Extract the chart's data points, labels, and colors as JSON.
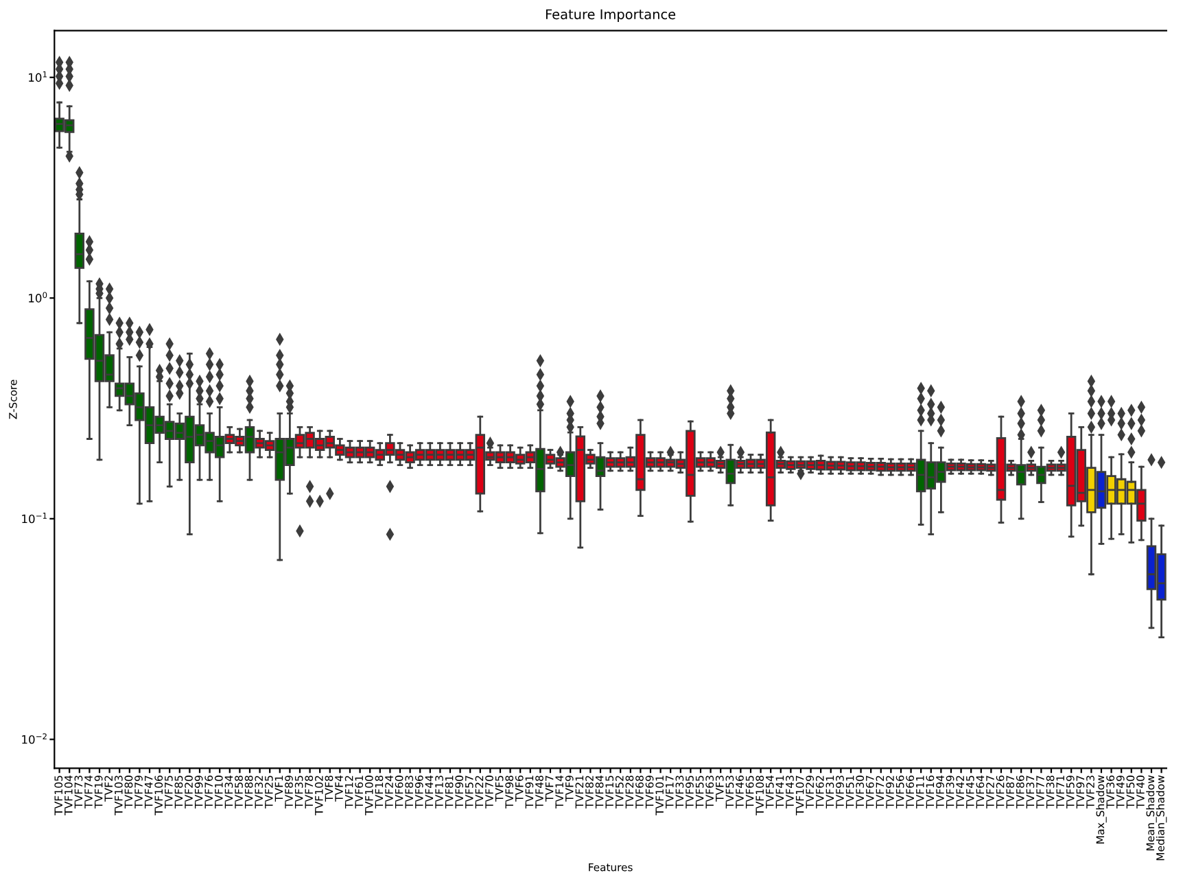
{
  "chart_data": {
    "type": "box",
    "title": "Feature Importance",
    "xlabel": "Features",
    "ylabel": "Z-Score",
    "categories": [
      "TVF105",
      "TVF104",
      "TVF73",
      "TVF74",
      "TVF19",
      "TVF2",
      "TVF103",
      "TVF80",
      "TVF79",
      "TVF47",
      "TVF106",
      "TVF75",
      "TVF85",
      "TVF20",
      "TVF99",
      "TVF76",
      "TVF10",
      "TVF34",
      "TVF58",
      "TVF88",
      "TVF32",
      "TVF25",
      "TVF1",
      "TVF89",
      "TVF35",
      "TVF78",
      "TVF102",
      "TVF8",
      "TVF4",
      "TVF12",
      "TVF61",
      "TVF100",
      "TVF18",
      "TVF24",
      "TVF60",
      "TVF83",
      "TVF96",
      "TVF44",
      "TVF13",
      "TVF81",
      "TVF90",
      "TVF57",
      "TVF22",
      "TVF70",
      "TVF5",
      "TVF98",
      "TVF6",
      "TVF91",
      "TVF48",
      "TVF7",
      "TVF14",
      "TVF9",
      "TVF21",
      "TVF82",
      "TVF84",
      "TVF15",
      "TVF52",
      "TVF28",
      "TVF68",
      "TVF69",
      "TVF101",
      "TVF17",
      "TVF33",
      "TVF95",
      "TVF55",
      "TVF63",
      "TVF3",
      "TVF53",
      "TVF46",
      "TVF65",
      "TVF108",
      "TVF54",
      "TVF41",
      "TVF43",
      "TVF107",
      "TVF29",
      "TVF62",
      "TVF31",
      "TVF93",
      "TVF51",
      "TVF30",
      "TVF67",
      "TVF72",
      "TVF92",
      "TVF56",
      "TVF66",
      "TVF11",
      "TVF16",
      "TVF94",
      "TVF39",
      "TVF42",
      "TVF45",
      "TVF64",
      "TVF27",
      "TVF26",
      "TVF87",
      "TVF86",
      "TVF37",
      "TVF77",
      "TVF38",
      "TVF71",
      "TVF59",
      "TVF97",
      "TVF23",
      "Max_Shadow",
      "TVF36",
      "TVF49",
      "TVF50",
      "TVF40",
      "Mean_Shadow",
      "Median_Shadow"
    ],
    "colors": [
      "#006400",
      "#006400",
      "#006400",
      "#006400",
      "#006400",
      "#006400",
      "#006400",
      "#006400",
      "#006400",
      "#006400",
      "#006400",
      "#006400",
      "#006400",
      "#006400",
      "#006400",
      "#006400",
      "#006400",
      "#dc0014",
      "#dc0014",
      "#006400",
      "#dc0014",
      "#dc0014",
      "#006400",
      "#006400",
      "#dc0014",
      "#dc0014",
      "#dc0014",
      "#dc0014",
      "#dc0014",
      "#dc0014",
      "#dc0014",
      "#dc0014",
      "#dc0014",
      "#dc0014",
      "#dc0014",
      "#dc0014",
      "#dc0014",
      "#dc0014",
      "#dc0014",
      "#dc0014",
      "#dc0014",
      "#dc0014",
      "#dc0014",
      "#dc0014",
      "#dc0014",
      "#dc0014",
      "#dc0014",
      "#dc0014",
      "#006400",
      "#dc0014",
      "#dc0014",
      "#006400",
      "#dc0014",
      "#dc0014",
      "#006400",
      "#dc0014",
      "#dc0014",
      "#dc0014",
      "#dc0014",
      "#dc0014",
      "#dc0014",
      "#dc0014",
      "#dc0014",
      "#dc0014",
      "#dc0014",
      "#dc0014",
      "#dc0014",
      "#006400",
      "#dc0014",
      "#dc0014",
      "#dc0014",
      "#dc0014",
      "#dc0014",
      "#dc0014",
      "#dc0014",
      "#dc0014",
      "#dc0014",
      "#dc0014",
      "#dc0014",
      "#dc0014",
      "#dc0014",
      "#dc0014",
      "#dc0014",
      "#dc0014",
      "#dc0014",
      "#dc0014",
      "#006400",
      "#006400",
      "#006400",
      "#dc0014",
      "#dc0014",
      "#dc0014",
      "#dc0014",
      "#dc0014",
      "#dc0014",
      "#dc0014",
      "#006400",
      "#dc0014",
      "#006400",
      "#dc0014",
      "#dc0014",
      "#dc0014",
      "#dc0014",
      "#f2d000",
      "#0a22d0",
      "#f2d000",
      "#f2d000",
      "#f2d000",
      "#dc0014",
      "#0a22d0",
      "#0a22d0"
    ],
    "boxes": [
      {
        "low": 4.8,
        "q1": 5.7,
        "median": 6.15,
        "q3": 6.5,
        "high": 7.7,
        "outliers": [
          9.4,
          10.1,
          10.9,
          11.7
        ]
      },
      {
        "low": 4.6,
        "q1": 5.65,
        "median": 6.06,
        "q3": 6.4,
        "high": 7.4,
        "outliers": [
          4.4,
          9.2,
          10.1,
          10.9,
          11.7
        ]
      },
      {
        "low": 0.77,
        "q1": 1.37,
        "median": 1.58,
        "q3": 1.96,
        "high": 2.8,
        "outliers": [
          2.95,
          3.1,
          3.3,
          3.7
        ]
      },
      {
        "low": 0.23,
        "q1": 0.53,
        "median": 0.66,
        "q3": 0.89,
        "high": 1.19,
        "outliers": [
          1.5,
          1.65,
          1.8
        ]
      },
      {
        "low": 0.185,
        "q1": 0.42,
        "median": 0.52,
        "q3": 0.68,
        "high": 1.0,
        "outliers": [
          1.05,
          1.1,
          1.16
        ]
      },
      {
        "low": 0.32,
        "q1": 0.42,
        "median": 0.45,
        "q3": 0.55,
        "high": 0.7,
        "outliers": [
          0.8,
          0.9,
          1.0,
          1.1
        ]
      },
      {
        "low": 0.31,
        "q1": 0.36,
        "median": 0.39,
        "q3": 0.41,
        "high": 0.59,
        "outliers": [
          0.62,
          0.7,
          0.77
        ]
      },
      {
        "low": 0.265,
        "q1": 0.33,
        "median": 0.36,
        "q3": 0.41,
        "high": 0.54,
        "outliers": [
          0.65,
          0.7,
          0.77
        ]
      },
      {
        "low": 0.117,
        "q1": 0.28,
        "median": 0.32,
        "q3": 0.37,
        "high": 0.49,
        "outliers": [
          0.55,
          0.63,
          0.7
        ]
      },
      {
        "low": 0.12,
        "q1": 0.22,
        "median": 0.265,
        "q3": 0.32,
        "high": 0.6,
        "outliers": [
          0.62,
          0.72
        ]
      },
      {
        "low": 0.18,
        "q1": 0.245,
        "median": 0.265,
        "q3": 0.29,
        "high": 0.42,
        "outliers": [
          0.44,
          0.47
        ]
      },
      {
        "low": 0.14,
        "q1": 0.23,
        "median": 0.25,
        "q3": 0.275,
        "high": 0.33,
        "outliers": [
          0.36,
          0.41,
          0.48,
          0.55,
          0.62
        ]
      },
      {
        "low": 0.15,
        "q1": 0.23,
        "median": 0.245,
        "q3": 0.27,
        "high": 0.3,
        "outliers": [
          0.37,
          0.4,
          0.46,
          0.52
        ]
      },
      {
        "low": 0.085,
        "q1": 0.18,
        "median": 0.235,
        "q3": 0.29,
        "high": 0.56,
        "outliers": [
          0.41,
          0.45,
          0.5
        ]
      },
      {
        "low": 0.15,
        "q1": 0.215,
        "median": 0.24,
        "q3": 0.265,
        "high": 0.33,
        "outliers": [
          0.35,
          0.38,
          0.42
        ]
      },
      {
        "low": 0.15,
        "q1": 0.2,
        "median": 0.225,
        "q3": 0.245,
        "high": 0.3,
        "outliers": [
          0.34,
          0.38,
          0.44,
          0.5,
          0.56
        ]
      },
      {
        "low": 0.12,
        "q1": 0.19,
        "median": 0.215,
        "q3": 0.235,
        "high": 0.32,
        "outliers": [
          0.35,
          0.4,
          0.45,
          0.5
        ]
      },
      {
        "low": 0.2,
        "q1": 0.22,
        "median": 0.23,
        "q3": 0.24,
        "high": 0.26
      },
      {
        "low": 0.2,
        "q1": 0.215,
        "median": 0.225,
        "q3": 0.235,
        "high": 0.255
      },
      {
        "low": 0.15,
        "q1": 0.2,
        "median": 0.235,
        "q3": 0.26,
        "high": 0.28,
        "outliers": [
          0.32,
          0.35,
          0.38,
          0.42
        ]
      },
      {
        "low": 0.19,
        "q1": 0.21,
        "median": 0.22,
        "q3": 0.23,
        "high": 0.25
      },
      {
        "low": 0.19,
        "q1": 0.205,
        "median": 0.215,
        "q3": 0.225,
        "high": 0.245
      },
      {
        "low": 0.065,
        "q1": 0.15,
        "median": 0.2,
        "q3": 0.23,
        "high": 0.3,
        "outliers": [
          0.4,
          0.45,
          0.5,
          0.55,
          0.65
        ]
      },
      {
        "low": 0.13,
        "q1": 0.175,
        "median": 0.21,
        "q3": 0.23,
        "high": 0.3,
        "outliers": [
          0.32,
          0.34,
          0.37,
          0.4
        ]
      },
      {
        "low": 0.19,
        "q1": 0.21,
        "median": 0.22,
        "q3": 0.24,
        "high": 0.26,
        "outliers": [
          0.088
        ]
      },
      {
        "low": 0.19,
        "q1": 0.21,
        "median": 0.23,
        "q3": 0.245,
        "high": 0.26,
        "outliers": [
          0.12,
          0.14
        ]
      },
      {
        "low": 0.19,
        "q1": 0.205,
        "median": 0.215,
        "q3": 0.23,
        "high": 0.25,
        "outliers": [
          0.12
        ]
      },
      {
        "low": 0.19,
        "q1": 0.21,
        "median": 0.22,
        "q3": 0.235,
        "high": 0.25,
        "outliers": [
          0.13
        ]
      },
      {
        "low": 0.185,
        "q1": 0.195,
        "median": 0.205,
        "q3": 0.215,
        "high": 0.23
      },
      {
        "low": 0.18,
        "q1": 0.19,
        "median": 0.2,
        "q3": 0.21,
        "high": 0.225
      },
      {
        "low": 0.18,
        "q1": 0.19,
        "median": 0.2,
        "q3": 0.21,
        "high": 0.225
      },
      {
        "low": 0.18,
        "q1": 0.19,
        "median": 0.2,
        "q3": 0.21,
        "high": 0.225
      },
      {
        "low": 0.175,
        "q1": 0.185,
        "median": 0.195,
        "q3": 0.205,
        "high": 0.22
      },
      {
        "low": 0.18,
        "q1": 0.195,
        "median": 0.205,
        "q3": 0.22,
        "high": 0.24,
        "outliers": [
          0.085,
          0.14
        ]
      },
      {
        "low": 0.175,
        "q1": 0.185,
        "median": 0.195,
        "q3": 0.205,
        "high": 0.22
      },
      {
        "low": 0.17,
        "q1": 0.18,
        "median": 0.19,
        "q3": 0.2,
        "high": 0.215
      },
      {
        "low": 0.175,
        "q1": 0.185,
        "median": 0.195,
        "q3": 0.205,
        "high": 0.22
      },
      {
        "low": 0.175,
        "q1": 0.185,
        "median": 0.195,
        "q3": 0.205,
        "high": 0.22
      },
      {
        "low": 0.175,
        "q1": 0.185,
        "median": 0.195,
        "q3": 0.205,
        "high": 0.22
      },
      {
        "low": 0.175,
        "q1": 0.185,
        "median": 0.195,
        "q3": 0.205,
        "high": 0.22
      },
      {
        "low": 0.175,
        "q1": 0.185,
        "median": 0.195,
        "q3": 0.205,
        "high": 0.22
      },
      {
        "low": 0.175,
        "q1": 0.185,
        "median": 0.195,
        "q3": 0.205,
        "high": 0.22
      },
      {
        "low": 0.108,
        "q1": 0.13,
        "median": 0.21,
        "q3": 0.24,
        "high": 0.29
      },
      {
        "low": 0.175,
        "q1": 0.185,
        "median": 0.19,
        "q3": 0.2,
        "high": 0.21,
        "outliers": [
          0.22
        ]
      },
      {
        "low": 0.17,
        "q1": 0.18,
        "median": 0.19,
        "q3": 0.2,
        "high": 0.215
      },
      {
        "low": 0.17,
        "q1": 0.18,
        "median": 0.19,
        "q3": 0.2,
        "high": 0.215
      },
      {
        "low": 0.17,
        "q1": 0.178,
        "median": 0.185,
        "q3": 0.195,
        "high": 0.21
      },
      {
        "low": 0.17,
        "q1": 0.18,
        "median": 0.19,
        "q3": 0.2,
        "high": 0.215
      },
      {
        "low": 0.086,
        "q1": 0.133,
        "median": 0.168,
        "q3": 0.207,
        "high": 0.31,
        "outliers": [
          0.33,
          0.36,
          0.4,
          0.45,
          0.52
        ]
      },
      {
        "low": 0.17,
        "q1": 0.178,
        "median": 0.185,
        "q3": 0.195,
        "high": 0.205
      },
      {
        "low": 0.165,
        "q1": 0.172,
        "median": 0.18,
        "q3": 0.188,
        "high": 0.195,
        "outliers": [
          0.2
        ]
      },
      {
        "low": 0.1,
        "q1": 0.156,
        "median": 0.175,
        "q3": 0.2,
        "high": 0.246,
        "outliers": [
          0.26,
          0.28,
          0.3,
          0.34
        ]
      },
      {
        "low": 0.074,
        "q1": 0.12,
        "median": 0.205,
        "q3": 0.236,
        "high": 0.26
      },
      {
        "low": 0.17,
        "q1": 0.178,
        "median": 0.185,
        "q3": 0.195,
        "high": 0.205
      },
      {
        "low": 0.11,
        "q1": 0.156,
        "median": 0.165,
        "q3": 0.19,
        "high": 0.22,
        "outliers": [
          0.27,
          0.29,
          0.32,
          0.36
        ]
      },
      {
        "low": 0.165,
        "q1": 0.172,
        "median": 0.18,
        "q3": 0.188,
        "high": 0.2
      },
      {
        "low": 0.165,
        "q1": 0.172,
        "median": 0.18,
        "q3": 0.188,
        "high": 0.2
      },
      {
        "low": 0.165,
        "q1": 0.172,
        "median": 0.18,
        "q3": 0.19,
        "high": 0.21
      },
      {
        "low": 0.103,
        "q1": 0.135,
        "median": 0.151,
        "q3": 0.24,
        "high": 0.28
      },
      {
        "low": 0.165,
        "q1": 0.172,
        "median": 0.18,
        "q3": 0.188,
        "high": 0.2
      },
      {
        "low": 0.165,
        "q1": 0.172,
        "median": 0.18,
        "q3": 0.188,
        "high": 0.2
      },
      {
        "low": 0.165,
        "q1": 0.172,
        "median": 0.18,
        "q3": 0.185,
        "high": 0.195,
        "outliers": [
          0.2
        ]
      },
      {
        "low": 0.162,
        "q1": 0.17,
        "median": 0.177,
        "q3": 0.185,
        "high": 0.2
      },
      {
        "low": 0.097,
        "q1": 0.127,
        "median": 0.158,
        "q3": 0.25,
        "high": 0.276
      },
      {
        "low": 0.165,
        "q1": 0.172,
        "median": 0.18,
        "q3": 0.188,
        "high": 0.2
      },
      {
        "low": 0.165,
        "q1": 0.172,
        "median": 0.18,
        "q3": 0.188,
        "high": 0.2
      },
      {
        "low": 0.162,
        "q1": 0.17,
        "median": 0.177,
        "q3": 0.183,
        "high": 0.19,
        "outliers": [
          0.2
        ]
      },
      {
        "low": 0.115,
        "q1": 0.145,
        "median": 0.16,
        "q3": 0.185,
        "high": 0.216,
        "outliers": [
          0.3,
          0.32,
          0.35,
          0.38
        ]
      },
      {
        "low": 0.162,
        "q1": 0.17,
        "median": 0.177,
        "q3": 0.183,
        "high": 0.19,
        "outliers": [
          0.2
        ]
      },
      {
        "low": 0.162,
        "q1": 0.17,
        "median": 0.177,
        "q3": 0.185,
        "high": 0.195
      },
      {
        "low": 0.162,
        "q1": 0.17,
        "median": 0.177,
        "q3": 0.185,
        "high": 0.195
      },
      {
        "low": 0.098,
        "q1": 0.115,
        "median": 0.154,
        "q3": 0.246,
        "high": 0.28
      },
      {
        "low": 0.162,
        "q1": 0.17,
        "median": 0.177,
        "q3": 0.183,
        "high": 0.19,
        "outliers": [
          0.2
        ]
      },
      {
        "low": 0.162,
        "q1": 0.168,
        "median": 0.175,
        "q3": 0.182,
        "high": 0.19
      },
      {
        "low": 0.165,
        "q1": 0.17,
        "median": 0.175,
        "q3": 0.182,
        "high": 0.19,
        "outliers": [
          0.16
        ]
      },
      {
        "low": 0.162,
        "q1": 0.168,
        "median": 0.175,
        "q3": 0.182,
        "high": 0.19
      },
      {
        "low": 0.16,
        "q1": 0.167,
        "median": 0.175,
        "q3": 0.183,
        "high": 0.193
      },
      {
        "low": 0.16,
        "q1": 0.167,
        "median": 0.174,
        "q3": 0.181,
        "high": 0.19
      },
      {
        "low": 0.16,
        "q1": 0.167,
        "median": 0.174,
        "q3": 0.181,
        "high": 0.19
      },
      {
        "low": 0.16,
        "q1": 0.166,
        "median": 0.173,
        "q3": 0.18,
        "high": 0.188
      },
      {
        "low": 0.16,
        "q1": 0.166,
        "median": 0.173,
        "q3": 0.18,
        "high": 0.188
      },
      {
        "low": 0.16,
        "q1": 0.166,
        "median": 0.172,
        "q3": 0.179,
        "high": 0.187
      },
      {
        "low": 0.158,
        "q1": 0.165,
        "median": 0.172,
        "q3": 0.179,
        "high": 0.187
      },
      {
        "low": 0.158,
        "q1": 0.165,
        "median": 0.171,
        "q3": 0.178,
        "high": 0.186
      },
      {
        "low": 0.158,
        "q1": 0.165,
        "median": 0.171,
        "q3": 0.178,
        "high": 0.186
      },
      {
        "low": 0.158,
        "q1": 0.165,
        "median": 0.171,
        "q3": 0.178,
        "high": 0.186
      },
      {
        "low": 0.094,
        "q1": 0.133,
        "median": 0.158,
        "q3": 0.185,
        "high": 0.25,
        "outliers": [
          0.28,
          0.31,
          0.35,
          0.39
        ]
      },
      {
        "low": 0.085,
        "q1": 0.137,
        "median": 0.154,
        "q3": 0.18,
        "high": 0.22,
        "outliers": [
          0.28,
          0.3,
          0.33,
          0.38
        ]
      },
      {
        "low": 0.107,
        "q1": 0.147,
        "median": 0.163,
        "q3": 0.18,
        "high": 0.21,
        "outliers": [
          0.25,
          0.28,
          0.32
        ]
      },
      {
        "low": 0.16,
        "q1": 0.166,
        "median": 0.172,
        "q3": 0.178,
        "high": 0.185
      },
      {
        "low": 0.16,
        "q1": 0.166,
        "median": 0.172,
        "q3": 0.178,
        "high": 0.185
      },
      {
        "low": 0.16,
        "q1": 0.166,
        "median": 0.171,
        "q3": 0.177,
        "high": 0.184
      },
      {
        "low": 0.16,
        "q1": 0.166,
        "median": 0.171,
        "q3": 0.177,
        "high": 0.184
      },
      {
        "low": 0.158,
        "q1": 0.165,
        "median": 0.17,
        "q3": 0.176,
        "high": 0.183
      },
      {
        "low": 0.096,
        "q1": 0.122,
        "median": 0.135,
        "q3": 0.232,
        "high": 0.29
      },
      {
        "low": 0.158,
        "q1": 0.165,
        "median": 0.17,
        "q3": 0.176,
        "high": 0.183
      },
      {
        "low": 0.1,
        "q1": 0.143,
        "median": 0.163,
        "q3": 0.175,
        "high": 0.23,
        "outliers": [
          0.24,
          0.27,
          0.3,
          0.34
        ]
      },
      {
        "low": 0.158,
        "q1": 0.165,
        "median": 0.17,
        "q3": 0.176,
        "high": 0.183,
        "outliers": [
          0.2
        ]
      },
      {
        "low": 0.119,
        "q1": 0.145,
        "median": 0.158,
        "q3": 0.172,
        "high": 0.21,
        "outliers": [
          0.25,
          0.28,
          0.31
        ]
      },
      {
        "low": 0.158,
        "q1": 0.165,
        "median": 0.17,
        "q3": 0.176,
        "high": 0.183
      },
      {
        "low": 0.158,
        "q1": 0.165,
        "median": 0.17,
        "q3": 0.176,
        "high": 0.183,
        "outliers": [
          0.2
        ]
      },
      {
        "low": 0.083,
        "q1": 0.115,
        "median": 0.141,
        "q3": 0.235,
        "high": 0.3
      },
      {
        "low": 0.093,
        "q1": 0.12,
        "median": 0.131,
        "q3": 0.205,
        "high": 0.26
      },
      {
        "low": 0.056,
        "q1": 0.107,
        "median": 0.135,
        "q3": 0.17,
        "high": 0.24,
        "outliers": [
          0.26,
          0.3,
          0.34,
          0.38,
          0.42
        ]
      },
      {
        "low": 0.077,
        "q1": 0.112,
        "median": 0.133,
        "q3": 0.163,
        "high": 0.24,
        "outliers": [
          0.27,
          0.3,
          0.34
        ]
      },
      {
        "low": 0.081,
        "q1": 0.117,
        "median": 0.135,
        "q3": 0.156,
        "high": 0.19,
        "outliers": [
          0.28,
          0.3,
          0.34
        ]
      },
      {
        "low": 0.085,
        "q1": 0.117,
        "median": 0.135,
        "q3": 0.151,
        "high": 0.196,
        "outliers": [
          0.24,
          0.27,
          0.3
        ]
      },
      {
        "low": 0.078,
        "q1": 0.117,
        "median": 0.135,
        "q3": 0.147,
        "high": 0.18,
        "outliers": [
          0.2,
          0.23,
          0.27,
          0.31
        ]
      },
      {
        "low": 0.08,
        "q1": 0.098,
        "median": 0.117,
        "q3": 0.135,
        "high": 0.172,
        "outliers": [
          0.25,
          0.28,
          0.32
        ]
      },
      {
        "low": 0.032,
        "q1": 0.048,
        "median": 0.056,
        "q3": 0.075,
        "high": 0.1,
        "outliers": [
          0.185
        ]
      },
      {
        "low": 0.029,
        "q1": 0.043,
        "median": 0.051,
        "q3": 0.069,
        "high": 0.093,
        "outliers": [
          0.18
        ]
      }
    ],
    "log": "y",
    "ylim": [
      0.0074,
      16.3
    ],
    "marker": "diamond",
    "yticks": [
      {
        "value": 0.01,
        "label": "10$^{−2}$"
      },
      {
        "value": 0.1,
        "label": "10$^{−1}$"
      },
      {
        "value": 1,
        "label": "10$^{0}$"
      },
      {
        "value": 10,
        "label": "10$^{1}$"
      }
    ]
  }
}
